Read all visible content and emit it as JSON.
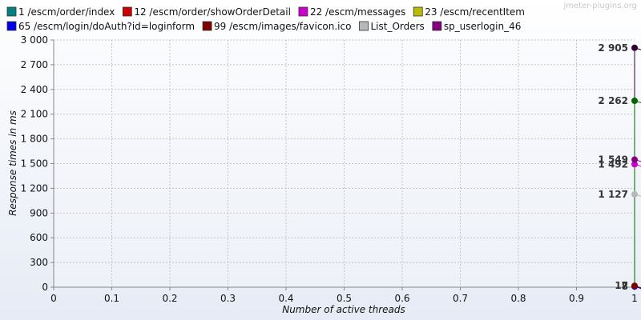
{
  "watermark": "jmeter-plugins.org",
  "chart_data": {
    "type": "line",
    "xlabel": "Number of active threads",
    "ylabel": "Response times in ms",
    "xlim": [
      0,
      1
    ],
    "ylim": [
      0,
      3000
    ],
    "x_ticks": [
      0,
      0.1,
      0.2,
      0.3,
      0.4,
      0.5,
      0.6,
      0.7,
      0.8,
      0.9,
      1
    ],
    "x_tick_labels": [
      "0",
      "0.1",
      "0.2",
      "0.3",
      "0.4",
      "0.5",
      "0.6",
      "0.7",
      "0.8",
      "0.9",
      "1"
    ],
    "y_ticks": [
      0,
      300,
      600,
      900,
      1200,
      1500,
      1800,
      2100,
      2400,
      2700,
      3000
    ],
    "y_tick_labels": [
      "0",
      "300",
      "600",
      "900",
      "1 200",
      "1 500",
      "1 800",
      "2 100",
      "2 400",
      "2 700",
      "3 000"
    ],
    "grid": true,
    "legend_position": "top",
    "series": [
      {
        "name": "1 /escm/order/index",
        "color": "#008080",
        "x": [
          1
        ],
        "y": [
          15
        ],
        "value_label": ""
      },
      {
        "name": "12 /escm/order/showOrderDetail",
        "color": "#cc0000",
        "x": [
          1
        ],
        "y": [
          12
        ],
        "value_label": ""
      },
      {
        "name": "22 /escm/messages",
        "color": "#cc00cc",
        "x": [
          1
        ],
        "y": [
          1492
        ],
        "value_label": "1 492"
      },
      {
        "name": "23 /escm/recentItem",
        "color": "#bbbb00",
        "x": [
          1
        ],
        "y": [
          10
        ],
        "value_label": ""
      },
      {
        "name": "65 /escm/login/doAuth?id=loginform",
        "color": "#0000ee",
        "x": [
          1
        ],
        "y": [
          8
        ],
        "value_label": "8"
      },
      {
        "name": "99 /escm/images/favicon.ico",
        "color": "#800000",
        "x": [
          1
        ],
        "y": [
          17
        ],
        "value_label": "17"
      },
      {
        "name": "List_Orders",
        "color": "#b8b8b8",
        "x": [
          1
        ],
        "y": [
          1127
        ],
        "value_label": "1 127"
      },
      {
        "name": "sp_userlogin_46",
        "color": "#800080",
        "x": [
          1
        ],
        "y": [
          1549
        ],
        "value_label": "1 549"
      },
      {
        "name": "",
        "color": "#006600",
        "x": [
          1
        ],
        "y": [
          2262
        ],
        "value_label": "2 262"
      },
      {
        "name": "",
        "color": "#330033",
        "x": [
          1
        ],
        "y": [
          2905
        ],
        "value_label": "2 905"
      }
    ]
  }
}
